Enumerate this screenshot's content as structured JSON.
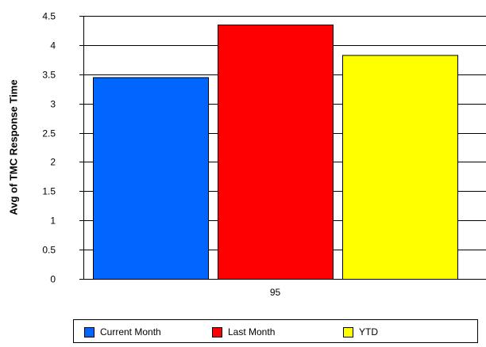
{
  "chart_data": {
    "type": "bar",
    "title": "",
    "xlabel": "",
    "ylabel": "Avg of TMC Response Time",
    "categories": [
      "95"
    ],
    "series": [
      {
        "name": "Current Month",
        "values": [
          3.45
        ],
        "color": "#0066ff"
      },
      {
        "name": "Last Month",
        "values": [
          4.35
        ],
        "color": "#ff0000"
      },
      {
        "name": "YTD",
        "values": [
          3.83
        ],
        "color": "#ffff00"
      }
    ],
    "ylim": [
      0,
      4.5
    ],
    "yticks": [
      "0",
      "0.5",
      "1",
      "1.5",
      "2",
      "2.5",
      "3",
      "3.5",
      "4",
      "4.5"
    ],
    "grid": true,
    "legend_position": "bottom"
  }
}
